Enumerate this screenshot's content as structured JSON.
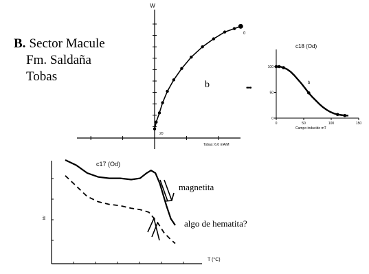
{
  "figure": {
    "panel_label": "B.",
    "caption_lines": [
      "Sector Macule",
      "Fm. Saldaña",
      "Tobas"
    ],
    "ellipsis": "•••"
  },
  "chart_data": [
    {
      "id": "zijderveld",
      "type": "scatter",
      "title": "",
      "y_axis_label": "W",
      "x_axis_note": "Tobas: 6.0 mA/M",
      "curve_label": "b",
      "start_label": "20",
      "end_label": "0",
      "points": [
        [
          0,
          0.08
        ],
        [
          0.01,
          0.14
        ],
        [
          0.03,
          0.22
        ],
        [
          0.05,
          0.31
        ],
        [
          0.08,
          0.41
        ],
        [
          0.12,
          0.51
        ],
        [
          0.17,
          0.61
        ],
        [
          0.23,
          0.71
        ],
        [
          0.3,
          0.8
        ],
        [
          0.37,
          0.87
        ],
        [
          0.44,
          0.93
        ],
        [
          0.5,
          0.96
        ],
        [
          0.54,
          0.98
        ]
      ],
      "xlim": [
        -0.54,
        0.62
      ],
      "ylim": [
        -0.15,
        1.0
      ]
    },
    {
      "id": "af_demag",
      "type": "line",
      "title": "c18 (Od)",
      "xlabel": "Campo inducido mT",
      "ylabel": "",
      "xlim": [
        0,
        100
      ],
      "ylim": [
        0,
        110
      ],
      "x_ticks": [
        0,
        50,
        100,
        150
      ],
      "y_ticks": [
        0,
        50,
        100
      ],
      "curve_label": "b",
      "points": [
        [
          0,
          100
        ],
        [
          5,
          100
        ],
        [
          10,
          98
        ],
        [
          15,
          95
        ],
        [
          20,
          90
        ],
        [
          25,
          83
        ],
        [
          30,
          75
        ],
        [
          35,
          67
        ],
        [
          40,
          58
        ],
        [
          45,
          49
        ],
        [
          50,
          41
        ],
        [
          55,
          34
        ],
        [
          60,
          27
        ],
        [
          65,
          21
        ],
        [
          70,
          16
        ],
        [
          75,
          12
        ],
        [
          80,
          9
        ],
        [
          85,
          7
        ],
        [
          90,
          6
        ],
        [
          95,
          5
        ],
        [
          100,
          5
        ]
      ],
      "markers": [
        [
          0,
          100
        ],
        [
          4,
          100
        ],
        [
          10,
          98
        ],
        [
          45,
          49
        ],
        [
          85,
          7
        ],
        [
          95,
          5
        ]
      ]
    },
    {
      "id": "thermomagnetic",
      "type": "line",
      "title": "c17 (Od)",
      "xlabel": "T (°C)",
      "ylabel": "M/",
      "xlim": [
        0,
        700
      ],
      "x_ticks": [
        100,
        200,
        300,
        400,
        500,
        600
      ],
      "y_ticks": [],
      "ylim": [
        0,
        1
      ],
      "series": [
        {
          "style": "solid",
          "points": [
            [
              0,
              0.9
            ],
            [
              50,
              0.86
            ],
            [
              100,
              0.8
            ],
            [
              150,
              0.77
            ],
            [
              200,
              0.76
            ],
            [
              250,
              0.76
            ],
            [
              300,
              0.75
            ],
            [
              340,
              0.76
            ],
            [
              370,
              0.8
            ],
            [
              390,
              0.82
            ],
            [
              410,
              0.8
            ],
            [
              430,
              0.72
            ],
            [
              460,
              0.55
            ],
            [
              480,
              0.45
            ],
            [
              500,
              0.4
            ]
          ]
        },
        {
          "style": "dashed",
          "points": [
            [
              0,
              0.78
            ],
            [
              50,
              0.7
            ],
            [
              100,
              0.62
            ],
            [
              150,
              0.58
            ],
            [
              200,
              0.56
            ],
            [
              250,
              0.55
            ],
            [
              300,
              0.53
            ],
            [
              340,
              0.52
            ],
            [
              380,
              0.5
            ],
            [
              420,
              0.42
            ],
            [
              450,
              0.34
            ],
            [
              480,
              0.29
            ],
            [
              500,
              0.26
            ]
          ]
        }
      ],
      "annotations": [
        "magnetita",
        "algo de hematita?"
      ]
    }
  ],
  "colors": {
    "ink": "#000000",
    "background": "#ffffff"
  }
}
